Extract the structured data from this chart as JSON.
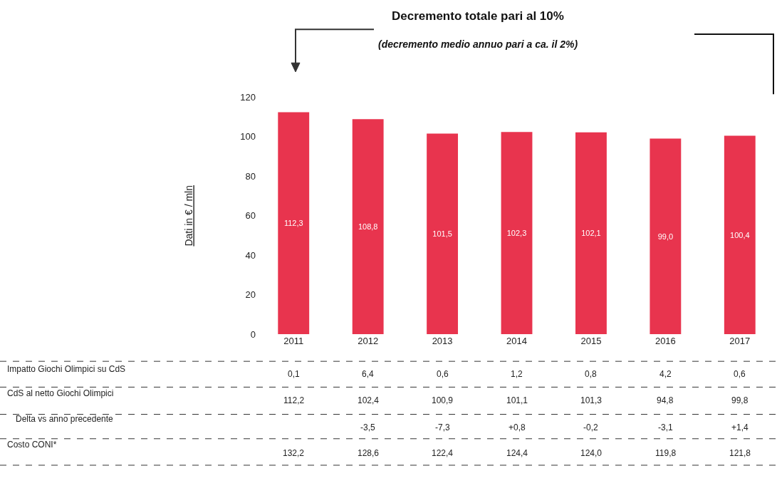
{
  "chart_data": {
    "type": "bar",
    "title": "Decremento totale pari al 10%",
    "subtitle": "(decremento medio annuo pari a ca. il 2%)",
    "ylabel": "Dati in € / mln",
    "categories": [
      "2011",
      "2012",
      "2013",
      "2014",
      "2015",
      "2016",
      "2017"
    ],
    "values": [
      112.3,
      108.8,
      101.5,
      102.3,
      102.1,
      99.0,
      100.4
    ],
    "value_labels": [
      "112,3",
      "108,8",
      "101,5",
      "102,3",
      "102,1",
      "99,0",
      "100,4"
    ],
    "color": "#e8344e",
    "ylim": [
      0,
      120
    ],
    "yticks": [
      0,
      20,
      40,
      60,
      80,
      100,
      120
    ],
    "annotations": [
      "Impatto Giochi Olimpici su CdS",
      "0,1",
      "6,4",
      "0,6",
      "1,2",
      "0,8",
      "4,2",
      "0,6",
      "CdS al netto Giochi Olimpici",
      "112,2",
      "102,4",
      "100,9",
      "101,1",
      "101,3",
      "94,8",
      "99,8",
      "Delta vs anno precedente",
      "-3,5",
      "-7,3",
      "+0,8",
      "-0,2",
      "-3,1",
      "+1,4",
      "Costo CONI*",
      "132,2",
      "128,6",
      "122,4",
      "124,4",
      "124,0",
      "119,8",
      "121,8"
    ]
  }
}
